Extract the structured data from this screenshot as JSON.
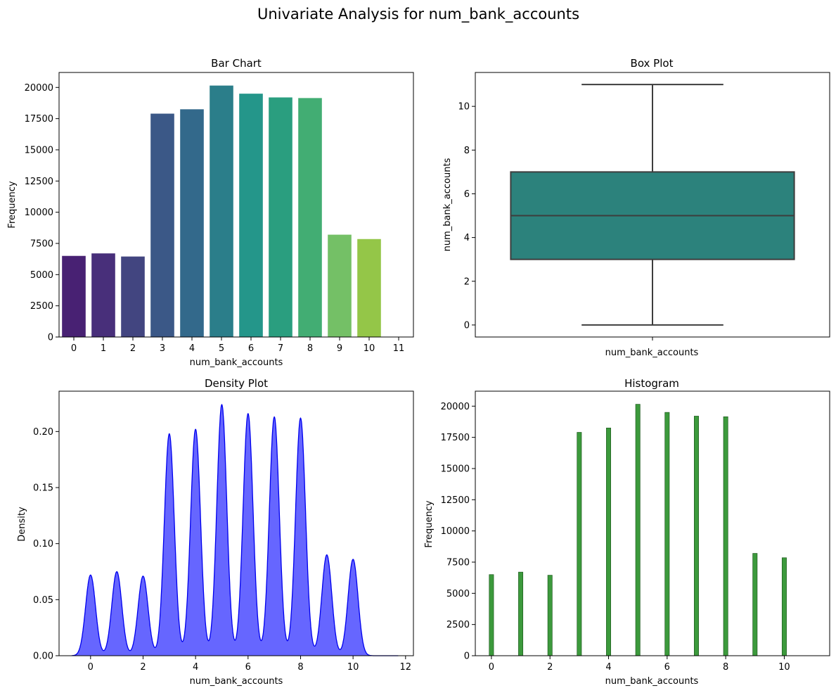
{
  "suptitle": "Univariate Analysis for num_bank_accounts",
  "chart_data": [
    {
      "type": "bar",
      "title": "Bar Chart",
      "xlabel": "num_bank_accounts",
      "ylabel": "Frequency",
      "categories": [
        "0",
        "1",
        "2",
        "3",
        "4",
        "5",
        "6",
        "7",
        "8",
        "9",
        "10",
        "11"
      ],
      "values": [
        6500,
        6700,
        6450,
        17900,
        18250,
        20150,
        19500,
        19200,
        19150,
        8200,
        7850,
        5
      ],
      "ylim": [
        0,
        21200
      ],
      "yticks": [
        0,
        2500,
        5000,
        7500,
        10000,
        12500,
        15000,
        17500,
        20000
      ],
      "palette": "viridis",
      "colors": [
        "#482173",
        "#482f7a",
        "#424580",
        "#3b5887",
        "#33698b",
        "#2b7e8a",
        "#24968a",
        "#2a9e7f",
        "#42ad73",
        "#74c066",
        "#94c648",
        "#b2d53a"
      ]
    },
    {
      "type": "box",
      "title": "Box Plot",
      "xlabel": "num_bank_accounts",
      "ylabel": "num_bank_accounts",
      "whisker_low": 0,
      "q1": 3,
      "median": 5,
      "q3": 7,
      "whisker_high": 11,
      "ylim": [
        -0.55,
        11.55
      ],
      "yticks": [
        0,
        2,
        4,
        6,
        8,
        10
      ],
      "box_color": "#2c827c",
      "line_color": "#3d3d3d"
    },
    {
      "type": "area",
      "title": "Density Plot",
      "xlabel": "num_bank_accounts",
      "ylabel": "Density",
      "peaks": [
        {
          "x": 0,
          "y": 0.072
        },
        {
          "x": 1,
          "y": 0.075
        },
        {
          "x": 2,
          "y": 0.071
        },
        {
          "x": 3,
          "y": 0.198
        },
        {
          "x": 4,
          "y": 0.202
        },
        {
          "x": 5,
          "y": 0.224
        },
        {
          "x": 6,
          "y": 0.216
        },
        {
          "x": 7,
          "y": 0.213
        },
        {
          "x": 8,
          "y": 0.212
        },
        {
          "x": 9,
          "y": 0.09
        },
        {
          "x": 10,
          "y": 0.086
        }
      ],
      "xlim": [
        -1.2,
        12.3
      ],
      "ylim": [
        0,
        0.236
      ],
      "xticks": [
        0,
        2,
        4,
        6,
        8,
        10,
        12
      ],
      "yticks": [
        "0.00",
        "0.05",
        "0.10",
        "0.15",
        "0.20"
      ],
      "fill_color": "#6666ff",
      "line_color": "#0000ee"
    },
    {
      "type": "bar",
      "title": "Histogram",
      "xlabel": "num_bank_accounts",
      "ylabel": "Frequency",
      "x": [
        0,
        1,
        2,
        3,
        4,
        5,
        6,
        7,
        8,
        9,
        10,
        11
      ],
      "values": [
        6500,
        6700,
        6450,
        17900,
        18250,
        20150,
        19500,
        19200,
        19150,
        8200,
        7850,
        5
      ],
      "xlim": [
        -0.55,
        11.55
      ],
      "ylim": [
        0,
        21200
      ],
      "xticks": [
        0,
        2,
        4,
        6,
        8,
        10
      ],
      "yticks": [
        0,
        2500,
        5000,
        7500,
        10000,
        12500,
        15000,
        17500,
        20000
      ],
      "bar_color": "#3c9a3c",
      "edge_color": "#1e5a1e"
    }
  ]
}
